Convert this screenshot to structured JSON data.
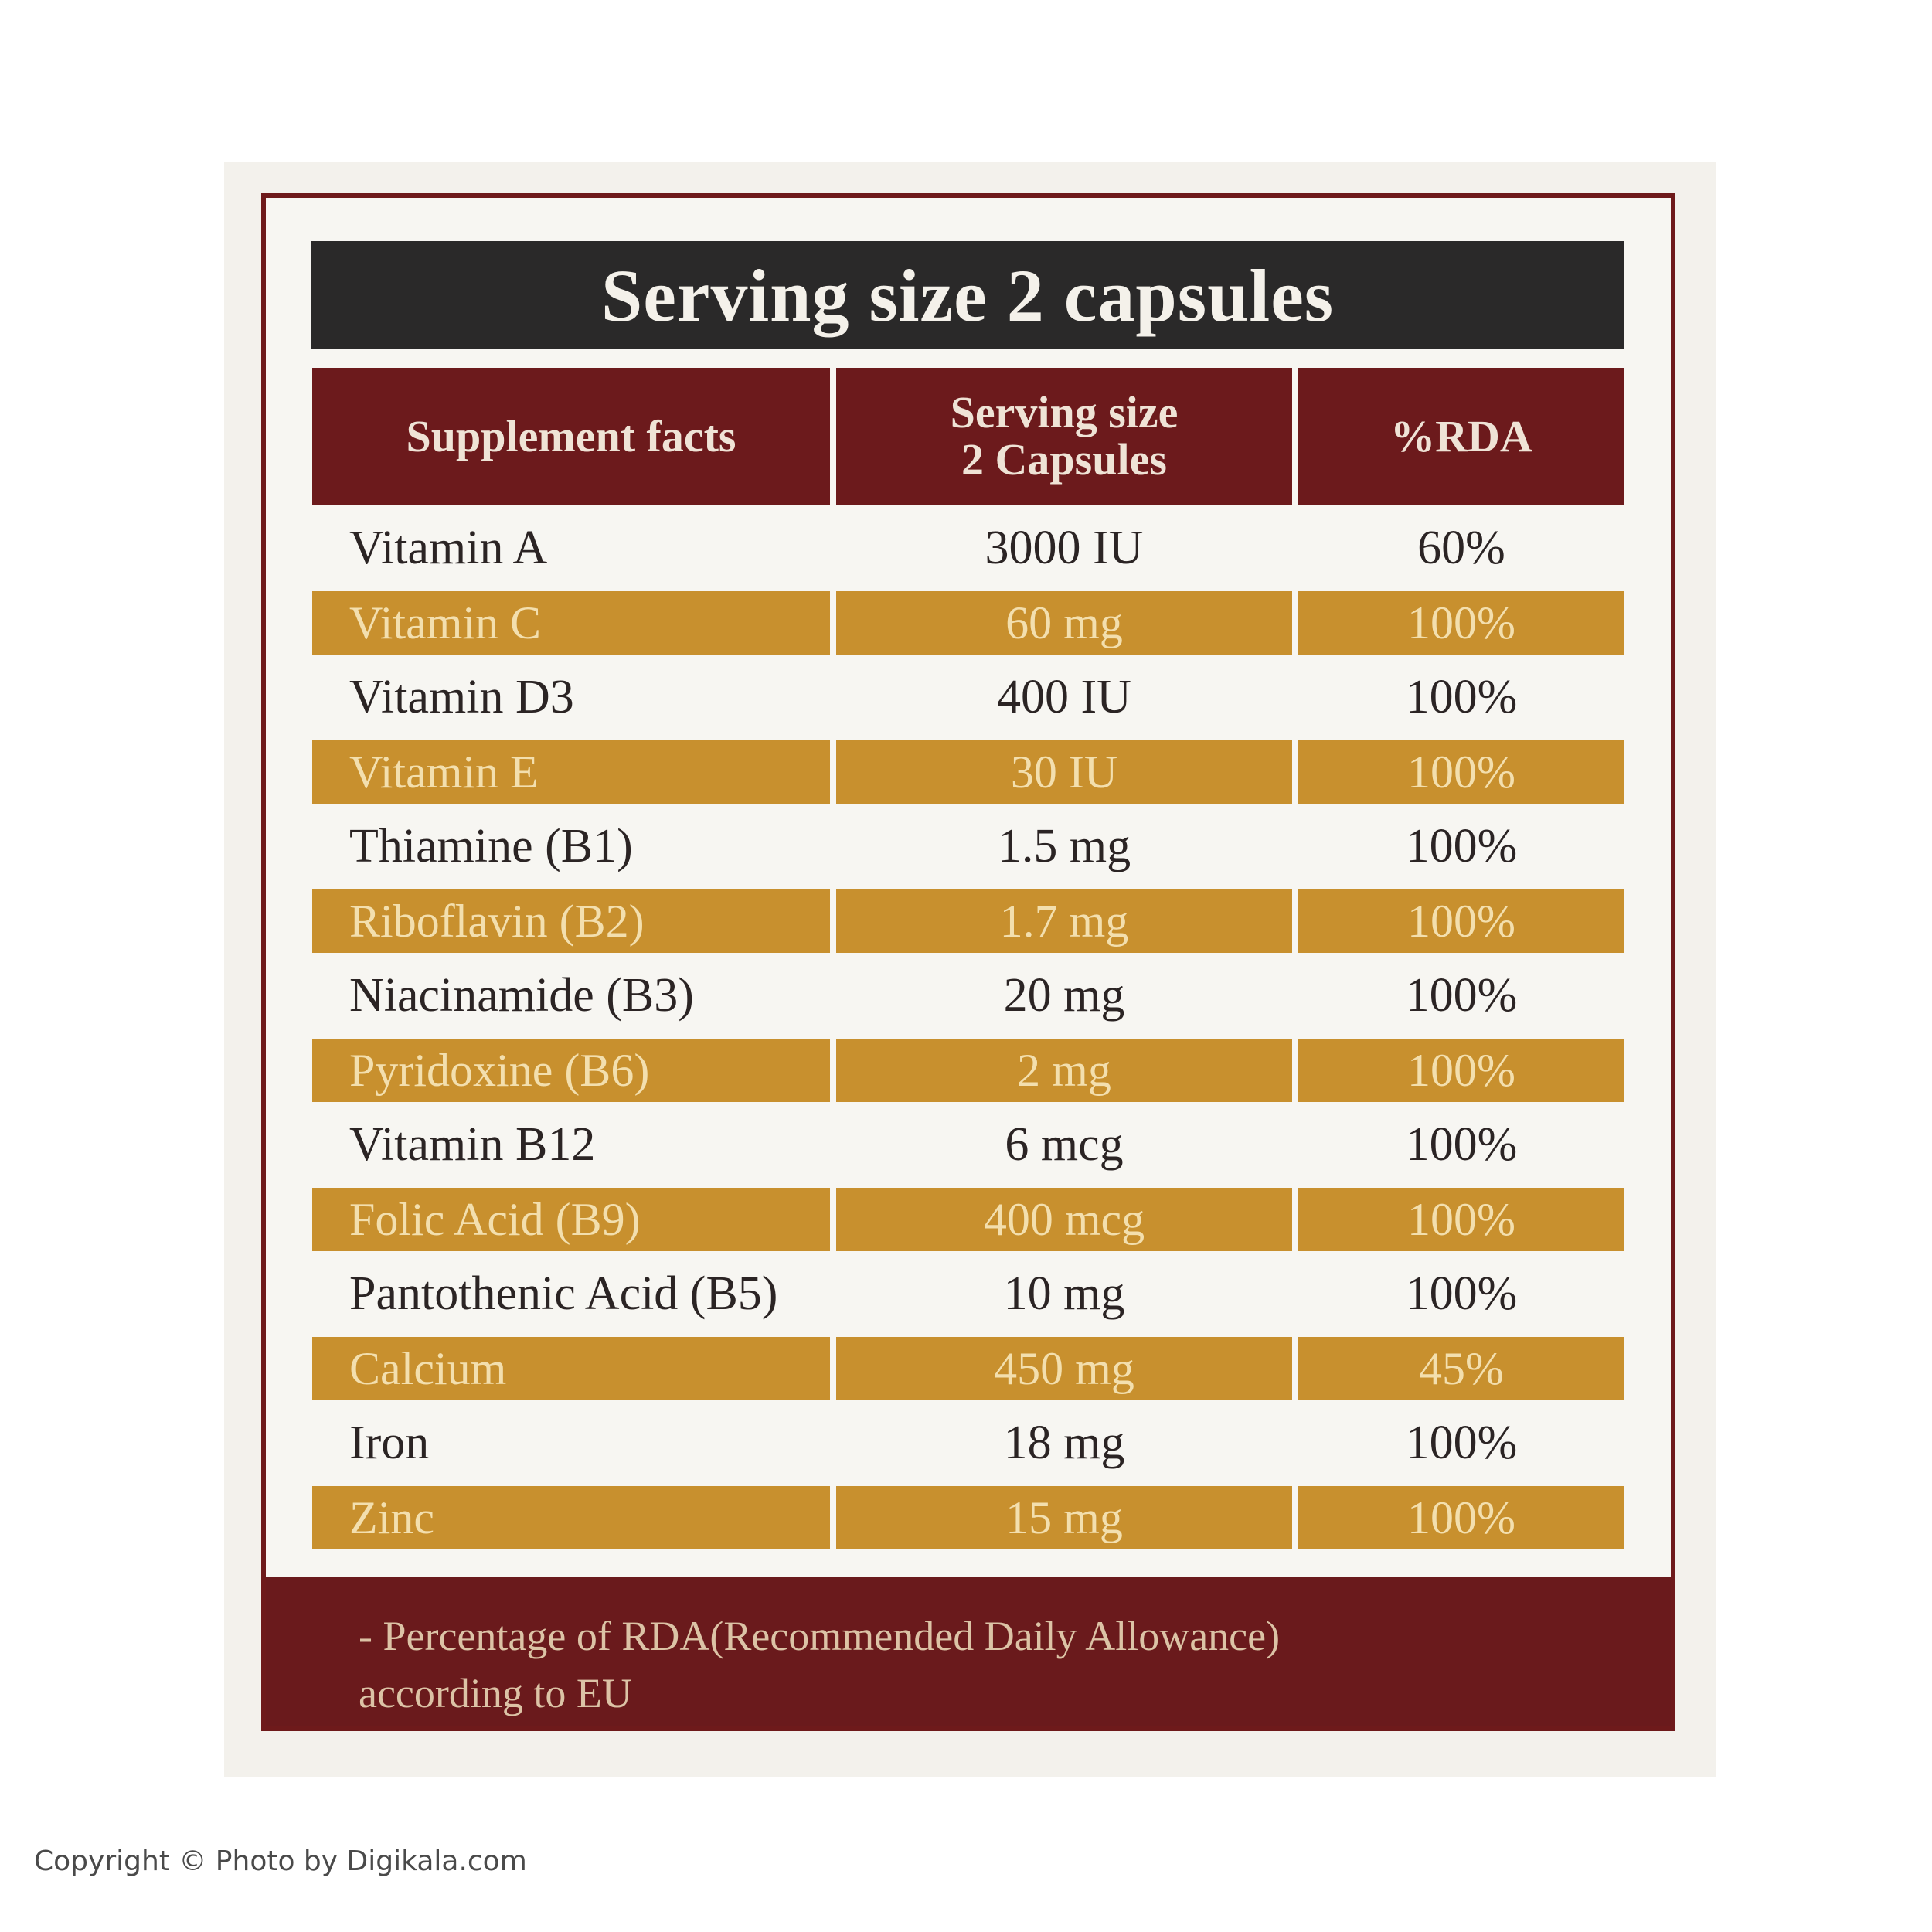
{
  "title": "Serving size 2 capsules",
  "headers": {
    "col1": "Supplement facts",
    "col2_line1": "Serving size",
    "col2_line2": "2 Capsules",
    "col3": "%RDA"
  },
  "rows": [
    {
      "nutrient": "Vitamin A",
      "amount": "3000 IU",
      "rda": "60%"
    },
    {
      "nutrient": "Vitamin C",
      "amount": "60 mg",
      "rda": "100%"
    },
    {
      "nutrient": "Vitamin D3",
      "amount": "400 IU",
      "rda": "100%"
    },
    {
      "nutrient": "Vitamin E",
      "amount": "30 IU",
      "rda": "100%"
    },
    {
      "nutrient": "Thiamine (B1)",
      "amount": "1.5 mg",
      "rda": "100%"
    },
    {
      "nutrient": "Riboflavin (B2)",
      "amount": "1.7 mg",
      "rda": "100%"
    },
    {
      "nutrient": "Niacinamide (B3)",
      "amount": "20 mg",
      "rda": "100%"
    },
    {
      "nutrient": "Pyridoxine (B6)",
      "amount": "2 mg",
      "rda": "100%"
    },
    {
      "nutrient": "Vitamin B12",
      "amount": "6 mcg",
      "rda": "100%"
    },
    {
      "nutrient": "Folic Acid (B9)",
      "amount": "400 mcg",
      "rda": "100%"
    },
    {
      "nutrient": "Pantothenic Acid (B5)",
      "amount": "10 mg",
      "rda": "100%"
    },
    {
      "nutrient": "Calcium",
      "amount": "450 mg",
      "rda": "45%"
    },
    {
      "nutrient": "Iron",
      "amount": "18 mg",
      "rda": "100%"
    },
    {
      "nutrient": "Zinc",
      "amount": "15 mg",
      "rda": "100%"
    }
  ],
  "footer": {
    "line1": "- Percentage of RDA(Recommended Daily Allowance)",
    "line2": "according to EU"
  },
  "copyright": "Copyright © Photo by Digikala.com",
  "colors": {
    "maroon": "#6c1a1c",
    "gold": "#c8902e",
    "dark": "#2a2929"
  }
}
